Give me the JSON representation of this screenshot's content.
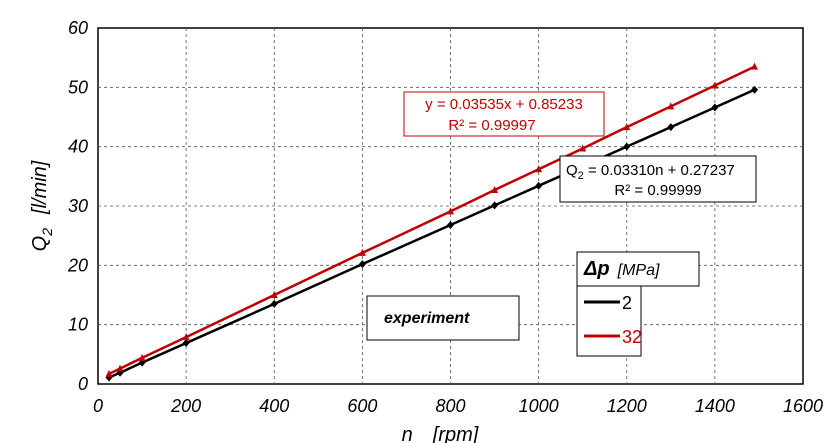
{
  "chart_data": {
    "type": "line",
    "xlabel": "n",
    "xlabel_unit": "[rpm]",
    "ylabel": "Q",
    "ylabel_sub": "2",
    "ylabel_unit": "[l/min]",
    "xlim": [
      0,
      1600
    ],
    "ylim": [
      0,
      60
    ],
    "xticks": [
      0,
      200,
      400,
      600,
      800,
      1000,
      1200,
      1400,
      1600
    ],
    "yticks": [
      0,
      10,
      20,
      30,
      40,
      50,
      60
    ],
    "grid": true,
    "series": [
      {
        "name": "2",
        "color": "#000000",
        "x": [
          25,
          50,
          100,
          200,
          400,
          600,
          800,
          900,
          1000,
          1100,
          1200,
          1300,
          1400,
          1490
        ],
        "y": [
          1.1,
          1.9,
          3.6,
          6.9,
          13.5,
          20.2,
          26.8,
          30.1,
          33.4,
          36.7,
          40.0,
          43.3,
          46.6,
          49.6
        ]
      },
      {
        "name": "32",
        "color": "#c00000",
        "x": [
          25,
          50,
          100,
          200,
          400,
          600,
          800,
          900,
          1000,
          1100,
          1200,
          1300,
          1400,
          1490
        ],
        "y": [
          1.7,
          2.6,
          4.4,
          7.9,
          15.0,
          22.1,
          29.1,
          32.7,
          36.2,
          39.7,
          43.3,
          46.8,
          50.3,
          53.5
        ]
      }
    ],
    "annotations": {
      "red_eq": "y = 0.03535x + 0.85233",
      "red_r2": "R² = 0.99997",
      "black_eq": "Q",
      "black_eq_sub": "2",
      "black_eq_rest": " = 0.03310n + 0.27237",
      "black_r2": "R² = 0.99999",
      "label_box": "experiment"
    },
    "legend": {
      "title_symbol": "Δp",
      "title_unit": "[MPa]",
      "placement": "right"
    }
  }
}
